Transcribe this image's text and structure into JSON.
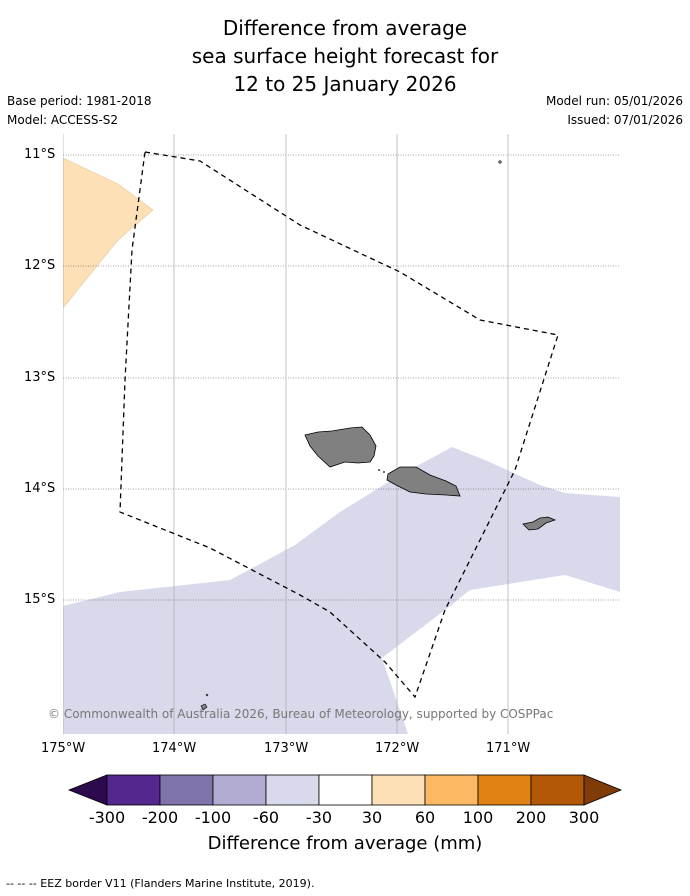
{
  "title": {
    "line1": "Difference from average",
    "line2": "sea surface height forecast for",
    "line3": "12 to 25 January 2026"
  },
  "meta": {
    "base_period": "Base period: 1981-2018",
    "model": "Model: ACCESS-S2",
    "model_run": "Model run: 05/01/2026",
    "issued": "Issued: 07/01/2026"
  },
  "map": {
    "lat_labels": [
      "11°S",
      "12°S",
      "13°S",
      "14°S",
      "15°S"
    ],
    "lon_labels": [
      "175°W",
      "174°W",
      "173°W",
      "172°W",
      "171°W"
    ],
    "extent": {
      "lon_min": -175,
      "lon_max": -170,
      "lat_min": -16.2,
      "lat_max": -10.8
    },
    "copyright": "© Commonwealth of Australia 2026, Bureau of Meteorology, supported by COSPPac"
  },
  "colorbar": {
    "ticks": [
      "-300",
      "-200",
      "-100",
      "-60",
      "-30",
      "30",
      "60",
      "100",
      "200",
      "300"
    ],
    "colors": [
      "#2d0a4e",
      "#54278f",
      "#8073ac",
      "#b2abd2",
      "#d8daeb",
      "#ffffff",
      "#fee0b6",
      "#fdb863",
      "#e08214",
      "#b35806",
      "#7f3b08"
    ],
    "title": "Difference from average (mm)"
  },
  "footer": "--  --  -- EEZ border V11 (Flanders Marine Institute, 2019)."
}
